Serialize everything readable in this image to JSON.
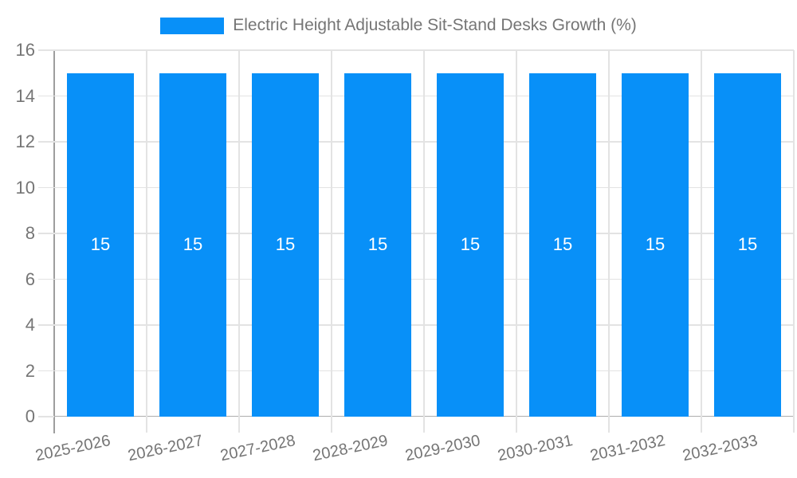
{
  "legend": {
    "label": "Electric Height Adjustable Sit-Stand Desks Growth (%)"
  },
  "chart_data": {
    "type": "bar",
    "title": "Electric Height Adjustable Sit-Stand Desks Growth (%)",
    "categories": [
      "2025-2026",
      "2026-2027",
      "2027-2028",
      "2028-2029",
      "2029-2030",
      "2030-2031",
      "2031-2032",
      "2032-2033"
    ],
    "values": [
      15,
      15,
      15,
      15,
      15,
      15,
      15,
      15
    ],
    "bar_value_labels": [
      "15",
      "15",
      "15",
      "15",
      "15",
      "15",
      "15",
      "15"
    ],
    "xlabel": "",
    "ylabel": "",
    "ylim": [
      0,
      16
    ],
    "yticks": [
      0,
      2,
      4,
      6,
      8,
      10,
      12,
      14,
      16
    ],
    "grid": true,
    "legend_position": "top",
    "colors": {
      "bar": "#0890F8",
      "grid": "#E3E3E3",
      "axis_line": "#9E9E9E",
      "baseline": "#ADADAD",
      "tick_text": "#757575",
      "legend_text": "#757575",
      "bar_label_text": "#FFFFFF"
    }
  }
}
